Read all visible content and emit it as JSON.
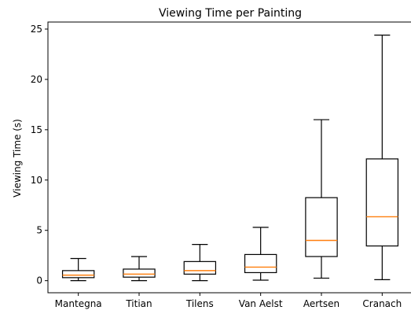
{
  "chart_data": {
    "type": "box",
    "title": "Viewing Time per Painting",
    "xlabel": "",
    "ylabel": "Viewing Time (s)",
    "ylim": [
      -1.2,
      25.7
    ],
    "yticks": [
      0,
      5,
      10,
      15,
      20,
      25
    ],
    "grid": false,
    "categories": [
      "Mantegna",
      "Titian",
      "Tilens",
      "Van Aelst",
      "Aertsen",
      "Cranach"
    ],
    "boxes": [
      {
        "whisker_low": 0.0,
        "q1": 0.3,
        "median": 0.55,
        "q3": 1.0,
        "whisker_high": 2.2
      },
      {
        "whisker_low": 0.0,
        "q1": 0.35,
        "median": 0.65,
        "q3": 1.15,
        "whisker_high": 2.4
      },
      {
        "whisker_low": 0.0,
        "q1": 0.65,
        "median": 1.0,
        "q3": 1.9,
        "whisker_high": 3.6
      },
      {
        "whisker_low": 0.05,
        "q1": 0.8,
        "median": 1.35,
        "q3": 2.6,
        "whisker_high": 5.3
      },
      {
        "whisker_low": 0.25,
        "q1": 2.4,
        "median": 4.0,
        "q3": 8.25,
        "whisker_high": 16.0
      },
      {
        "whisker_low": 0.1,
        "q1": 3.45,
        "median": 6.35,
        "q3": 12.1,
        "whisker_high": 24.4
      }
    ],
    "colors": {
      "box": "#000000",
      "median": "#ff7f0e"
    }
  }
}
